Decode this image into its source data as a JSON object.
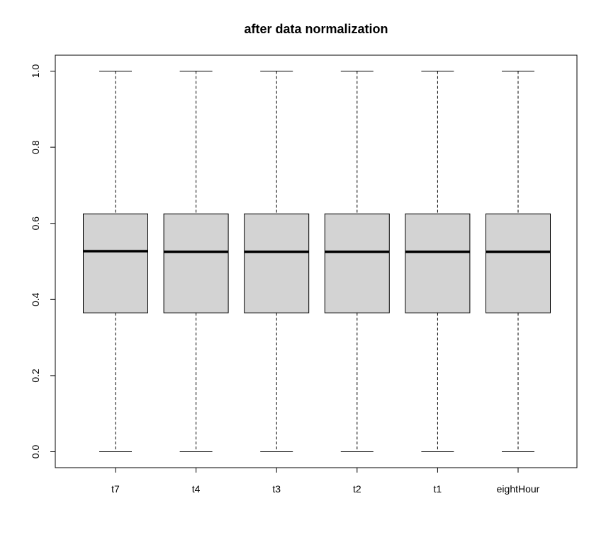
{
  "chart_data": {
    "type": "boxplot",
    "title": "after data normalization",
    "xlabel": "",
    "ylabel": "",
    "categories": [
      "t7",
      "t4",
      "t3",
      "t2",
      "t1",
      "eightHour"
    ],
    "boxes": [
      {
        "category": "t7",
        "min": 0.0,
        "q1": 0.365,
        "median": 0.527,
        "q3": 0.625,
        "max": 1.0
      },
      {
        "category": "t4",
        "min": 0.0,
        "q1": 0.365,
        "median": 0.525,
        "q3": 0.625,
        "max": 1.0
      },
      {
        "category": "t3",
        "min": 0.0,
        "q1": 0.365,
        "median": 0.525,
        "q3": 0.625,
        "max": 1.0
      },
      {
        "category": "t2",
        "min": 0.0,
        "q1": 0.365,
        "median": 0.525,
        "q3": 0.625,
        "max": 1.0
      },
      {
        "category": "t1",
        "min": 0.0,
        "q1": 0.365,
        "median": 0.525,
        "q3": 0.625,
        "max": 1.0
      },
      {
        "category": "eightHour",
        "min": 0.0,
        "q1": 0.365,
        "median": 0.525,
        "q3": 0.625,
        "max": 1.0
      }
    ],
    "yticks": [
      "0.0",
      "0.2",
      "0.4",
      "0.6",
      "0.8",
      "1.0"
    ],
    "ylim": [
      -0.04,
      1.04
    ],
    "grid": false,
    "box_color": "#d3d3d3"
  }
}
